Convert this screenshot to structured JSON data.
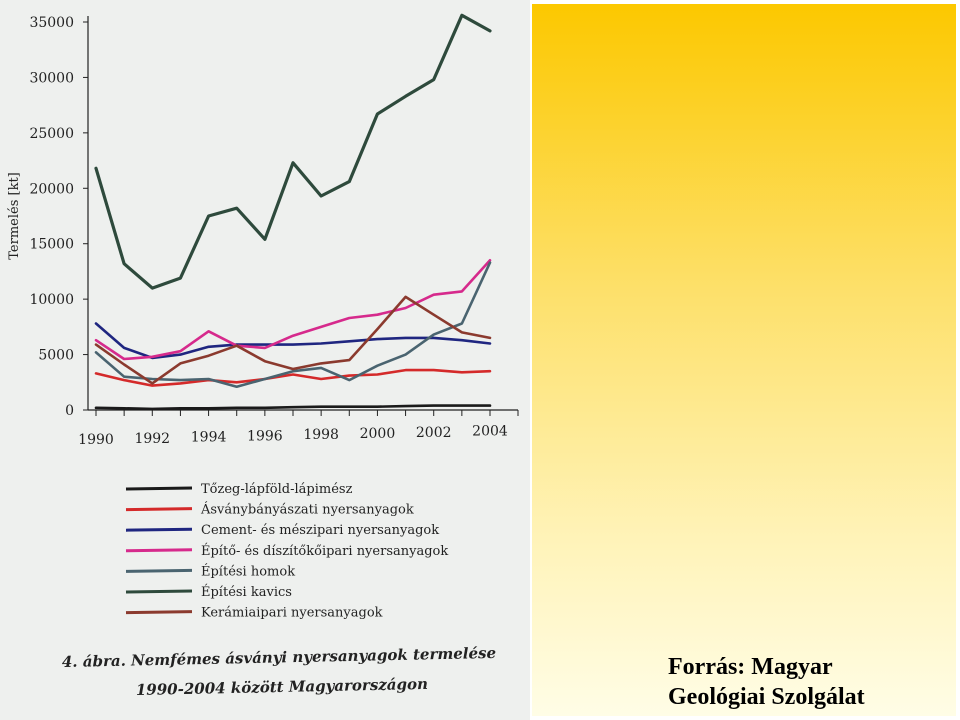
{
  "chart_data": {
    "type": "line",
    "ylabel": "Termelés [kt]",
    "xlabel": "",
    "x": [
      1990,
      1991,
      1992,
      1993,
      1994,
      1995,
      1996,
      1997,
      1998,
      1999,
      2000,
      2001,
      2002,
      2003,
      2004
    ],
    "xticks": [
      "1990",
      "1992",
      "1994",
      "1996",
      "1998",
      "2000",
      "2002",
      "2004"
    ],
    "yticks": [
      "0",
      "5000",
      "10000",
      "15000",
      "20000",
      "25000",
      "30000",
      "35000"
    ],
    "ylim": [
      0,
      35000
    ],
    "xlim": [
      1990,
      2004
    ],
    "legend_position": "below",
    "series": [
      {
        "name": "Tőzeg-lápföld-lápimész",
        "color": "#1a1a1a",
        "values": [
          200,
          150,
          100,
          150,
          150,
          200,
          200,
          250,
          300,
          300,
          300,
          350,
          400,
          400,
          400
        ]
      },
      {
        "name": "Ásványbányászati nyersanyagok",
        "color": "#d42a2a",
        "values": [
          3300,
          2700,
          2200,
          2400,
          2700,
          2500,
          2800,
          3200,
          2800,
          3100,
          3200,
          3600,
          3600,
          3400,
          3500
        ]
      },
      {
        "name": "Cement- és mészipari nyersanyagok",
        "color": "#1f2680",
        "values": [
          7800,
          5600,
          4700,
          5000,
          5700,
          5900,
          5900,
          5900,
          6000,
          6200,
          6400,
          6500,
          6500,
          6300,
          6000
        ]
      },
      {
        "name": "Építő- és díszítőkőipari nyersanyagok",
        "color": "#d62a8c",
        "values": [
          6300,
          4600,
          4800,
          5300,
          7100,
          5800,
          5600,
          6700,
          7500,
          8300,
          8600,
          9200,
          10400,
          10700,
          13500
        ]
      },
      {
        "name": "Építési homok",
        "color": "#4a6470",
        "values": [
          5200,
          3000,
          2800,
          2700,
          2800,
          2100,
          2800,
          3500,
          3800,
          2700,
          4000,
          5000,
          6800,
          7800,
          13300
        ]
      },
      {
        "name": "Építési kavics",
        "color": "#2e4a3c",
        "values": [
          21800,
          13200,
          11000,
          11900,
          17500,
          18200,
          15400,
          22300,
          19300,
          20600,
          26700,
          28300,
          29800,
          35600,
          34200
        ]
      },
      {
        "name": "Kerámiaipari nyersanyagok",
        "color": "#8b3a2e",
        "values": [
          5900,
          4100,
          2400,
          4200,
          4900,
          5800,
          4400,
          3700,
          4200,
          4500,
          7300,
          10200,
          8600,
          7000,
          6500
        ]
      }
    ]
  },
  "caption": {
    "line1": "4. ábra.  Nemfémes ásványi nyersanyagok termelése",
    "line2": "1990-2004 között Magyarországon"
  },
  "source": {
    "line1": "Forrás: Magyar",
    "line2": "Geológiai Szolgálat"
  }
}
